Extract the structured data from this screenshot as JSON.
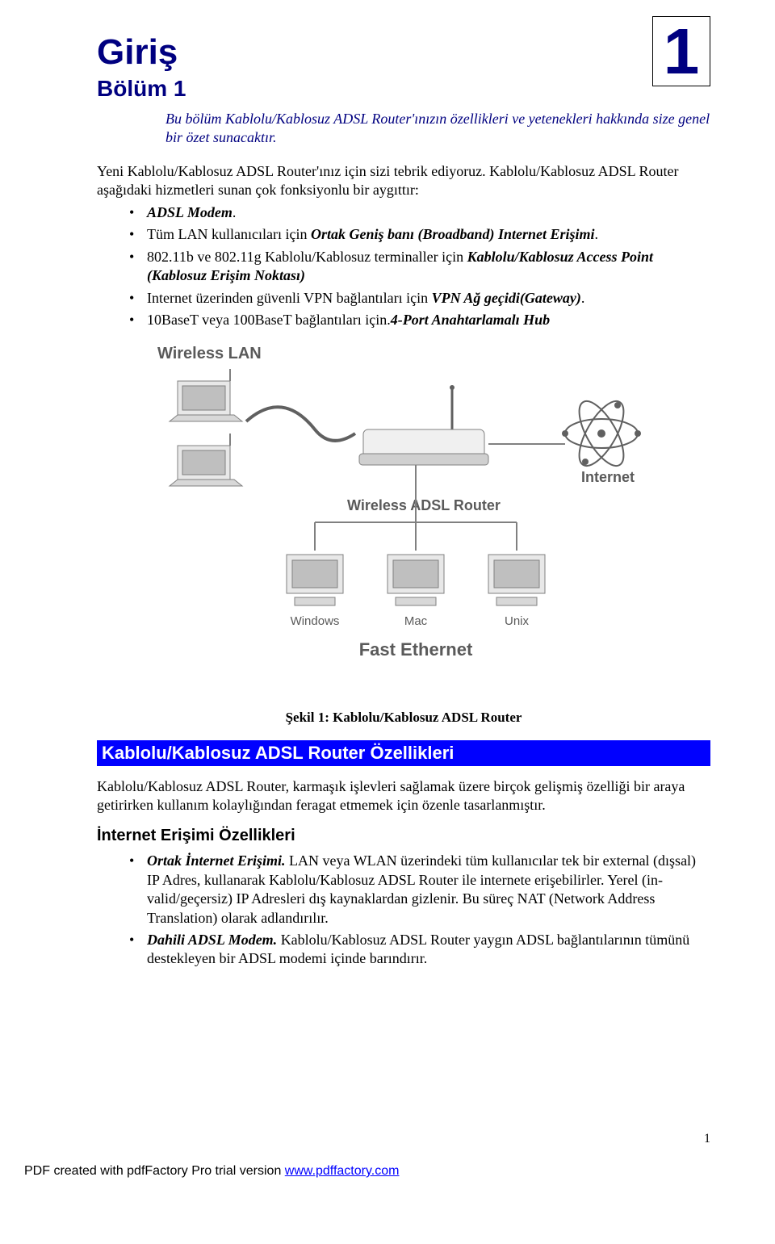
{
  "chapter_number": "1",
  "title": "Giriş",
  "subtitle": "Bölüm 1",
  "intro": "Bu bölüm  Kablolu/Kablosuz ADSL Router'ınızın özellikleri ve yetenekleri hakkında size genel bir özet sunacaktır.",
  "para1": "Yeni Kablolu/Kablosuz ADSL Router'ınız için sizi tebrik ediyoruz. Kablolu/Kablosuz ADSL Router aşağıdaki hizmetleri sunan çok fonksiyonlu bir aygıttır:",
  "bullets1": [
    {
      "pre": "",
      "bold": "ADSL Modem",
      "post": "."
    },
    {
      "pre": "Tüm LAN kullanıcıları için ",
      "bold": "Ortak Geniş banı (Broadband) Internet Erişimi",
      "post": "."
    },
    {
      "pre": "802.11b ve 802.11g Kablolu/Kablosuz terminaller için ",
      "bold": "Kablolu/Kablosuz Access Point (Kablosuz Erişim Noktası)",
      "post": ""
    },
    {
      "pre": "Internet üzerinden güvenli VPN bağlantıları için ",
      "bold": "VPN Ağ geçidi(Gateway)",
      "post": "."
    },
    {
      "pre": "10BaseT veya 100BaseT bağlantıları için.",
      "bold": "4-Port Anahtarlamalı Hub",
      "post": ""
    }
  ],
  "diagram": {
    "label_wlan": "Wireless LAN",
    "label_internet": "Internet",
    "label_router_top": "Wireless ADSL Router",
    "label_windows": "Windows",
    "label_mac": "Mac",
    "label_unix": "Unix",
    "label_ethernet": "Fast Ethernet",
    "colors": {
      "lines": "#808080",
      "text": "#5a5a5a",
      "box": "#c0c0c0"
    }
  },
  "caption": "Şekil 1: Kablolu/Kablosuz ADSL Router",
  "section_bar": "Kablolu/Kablosuz ADSL Router Özellikleri",
  "para2": "Kablolu/Kablosuz ADSL Router, karmaşık işlevleri sağlamak üzere birçok gelişmiş özelliği bir araya getirirken kullanım kolaylığından feragat etmemek için özenle tasarlanmıştır.",
  "subheading": "İnternet Erişimi Özellikleri",
  "bullets2": [
    {
      "bold": "Ortak İnternet Erişimi.",
      "post": "  LAN veya WLAN üzerindeki tüm kullanıcılar tek bir external (dışsal)  IP Adres, kullanarak Kablolu/Kablosuz ADSL Router ile internete erişebilirler. Yerel (in-valid/geçersiz) IP Adresleri dış kaynaklardan gizlenir. Bu süreç NAT (Network Address Translation) olarak adlandırılır."
    },
    {
      "bold": "Dahili ADSL Modem.",
      "post": " Kablolu/Kablosuz ADSL Router yaygın ADSL bağlantılarının tümünü destekleyen bir ADSL modemi içinde barındırır."
    }
  ],
  "page_number": "1",
  "footer_pre": "PDF created with pdfFactory Pro trial version ",
  "footer_link": "www.pdffactory.com"
}
